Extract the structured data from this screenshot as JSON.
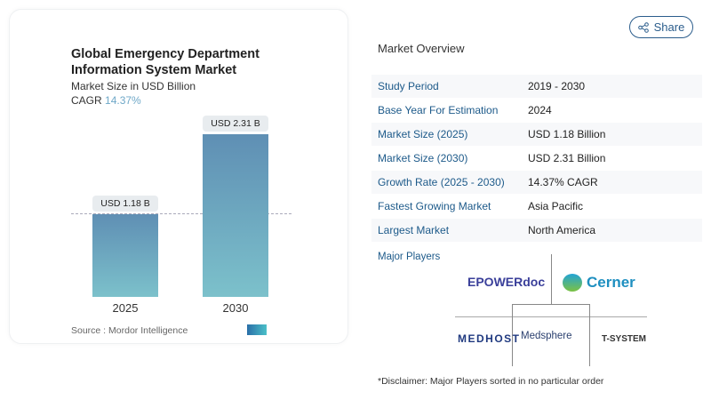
{
  "chart_data": {
    "type": "bar",
    "title": "Global Emergency Department Information System Market",
    "subtitle": "Market Size in USD Billion",
    "cagr_label": "CAGR",
    "cagr_value": "14.37%",
    "categories": [
      "2025",
      "2030"
    ],
    "values": [
      1.18,
      2.31
    ],
    "data_labels": [
      "USD 1.18 B",
      "USD 2.31 B"
    ],
    "colors": [
      "#5f8fb4",
      "#7cc1cb"
    ],
    "source": "Source :  Mordor Intelligence"
  },
  "share": {
    "label": "Share",
    "icon": "share-icon"
  },
  "overview": {
    "heading": "Market Overview",
    "rows": [
      {
        "label": "Study Period",
        "value": "2019 - 2030"
      },
      {
        "label": "Base Year For Estimation",
        "value": "2024"
      },
      {
        "label": "Market Size (2025)",
        "value": "USD 1.18 Billion"
      },
      {
        "label": "Market Size (2030)",
        "value": "USD 2.31 Billion"
      },
      {
        "label": "Growth Rate (2025 - 2030)",
        "value": "14.37% CAGR"
      },
      {
        "label": "Fastest Growing Market",
        "value": "Asia Pacific"
      },
      {
        "label": "Largest Market",
        "value": "North America"
      }
    ]
  },
  "players": {
    "heading": "Major Players",
    "logos": [
      "EPOWERdoc",
      "Cerner",
      "MEDHOST",
      "Medsphere",
      "T-SYSTEM"
    ],
    "disclaimer": "*Disclaimer: Major Players sorted in no particular order"
  }
}
